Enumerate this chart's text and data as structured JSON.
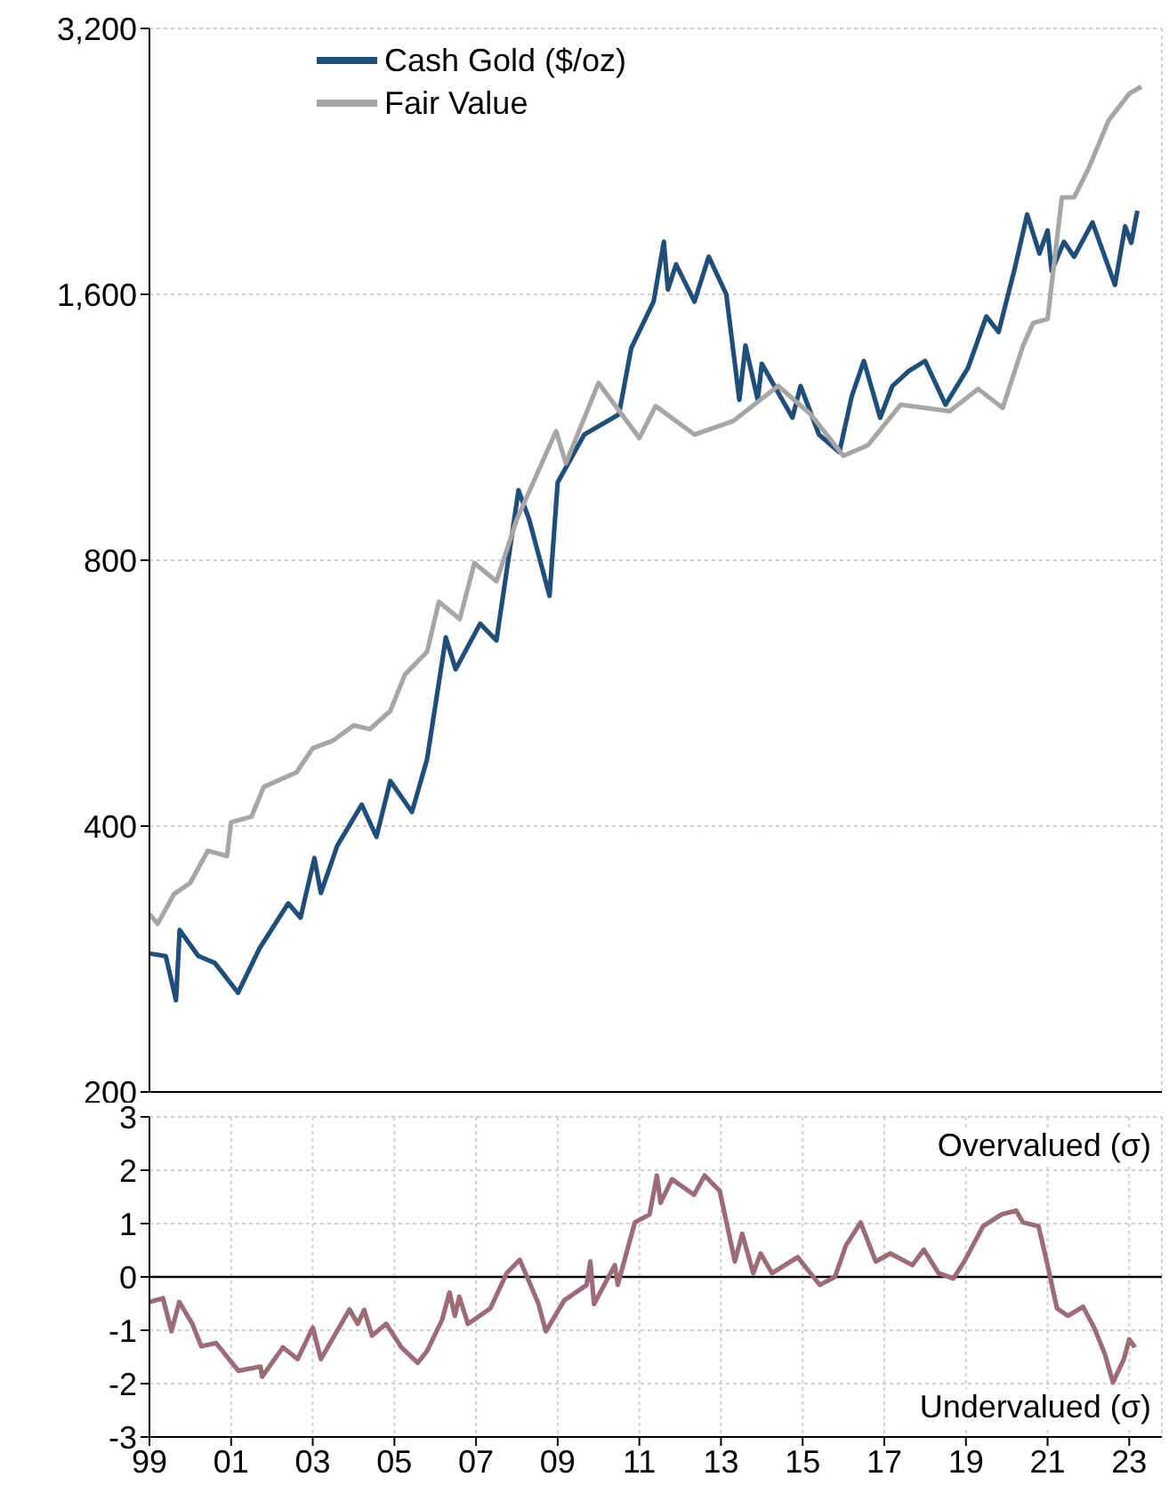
{
  "chart_data": [
    {
      "type": "line",
      "log": "y",
      "grid": true,
      "legend": "top left",
      "tick_labels": "y",
      "xlim": [
        1999,
        2023.8
      ],
      "xticks": [
        {
          "value": 1999,
          "label": null
        },
        {
          "value": 2001,
          "label": null
        },
        {
          "value": 2003,
          "label": null
        },
        {
          "value": 2005,
          "label": null
        },
        {
          "value": 2007,
          "label": null
        },
        {
          "value": 2009,
          "label": null
        },
        {
          "value": 2011,
          "label": null
        },
        {
          "value": 2013,
          "label": null
        },
        {
          "value": 2015,
          "label": null
        },
        {
          "value": 2017,
          "label": null
        },
        {
          "value": 2019,
          "label": null
        },
        {
          "value": 2021,
          "label": null
        },
        {
          "value": 2023,
          "label": null
        }
      ],
      "ylim": [
        200,
        3200
      ],
      "yticks": [
        200,
        400,
        800,
        {
          "value": 1600,
          "label": "1,600"
        },
        {
          "value": 3200,
          "label": "3,200"
        }
      ],
      "series": [
        {
          "name": "Cash Gold ($/oz)",
          "color": "#1f4e79",
          "x": [
            1999.0,
            1999.4,
            1999.65,
            1999.74,
            2000.2,
            2000.6,
            2001.17,
            2001.7,
            2002.4,
            2002.7,
            2003.04,
            2003.2,
            2003.6,
            2004.2,
            2004.56,
            2004.9,
            2005.43,
            2005.8,
            2006.26,
            2006.5,
            2007.1,
            2007.5,
            2008.04,
            2008.3,
            2008.8,
            2009.0,
            2009.65,
            2010.5,
            2010.8,
            2011.35,
            2011.6,
            2011.7,
            2011.9,
            2012.35,
            2012.7,
            2013.13,
            2013.45,
            2013.6,
            2013.9,
            2014.0,
            2014.75,
            2014.95,
            2015.4,
            2015.9,
            2016.2,
            2016.5,
            2016.9,
            2017.2,
            2017.6,
            2018.0,
            2018.5,
            2019.05,
            2019.5,
            2019.8,
            2020.2,
            2020.5,
            2020.8,
            2021.0,
            2021.1,
            2021.4,
            2021.65,
            2022.1,
            2022.65,
            2022.9,
            2023.05,
            2023.2
          ],
          "values": [
            287,
            285,
            254,
            305,
            285,
            280,
            259,
            291,
            327,
            315,
            368,
            336,
            380,
            423,
            389,
            450,
            415,
            476,
            654,
            602,
            678,
            649,
            960,
            890,
            729,
            980,
            1110,
            1170,
            1390,
            1570,
            1835,
            1620,
            1730,
            1570,
            1765,
            1600,
            1215,
            1400,
            1215,
            1335,
            1160,
            1260,
            1110,
            1060,
            1225,
            1345,
            1160,
            1260,
            1310,
            1345,
            1200,
            1320,
            1510,
            1450,
            1715,
            1970,
            1780,
            1890,
            1700,
            1835,
            1765,
            1930,
            1640,
            1910,
            1830,
            1990
          ]
        },
        {
          "name": "Fair Value",
          "color": "#a6a6a6",
          "x": [
            1999.0,
            1999.2,
            1999.6,
            2000.0,
            2000.43,
            2000.9,
            2001.0,
            2001.5,
            2001.8,
            2002.6,
            2003.0,
            2003.5,
            2004.0,
            2004.4,
            2004.9,
            2005.26,
            2005.8,
            2006.09,
            2006.6,
            2006.96,
            2007.5,
            2008.0,
            2008.96,
            2009.2,
            2010.0,
            2011.0,
            2011.4,
            2012.35,
            2013.3,
            2014.4,
            2015.2,
            2016.0,
            2016.6,
            2017.4,
            2018.6,
            2019.3,
            2019.9,
            2020.4,
            2020.65,
            2021.0,
            2021.35,
            2021.65,
            2022.0,
            2022.5,
            2023.0,
            2023.3
          ],
          "values": [
            318,
            310,
            335,
            345,
            375,
            370,
            404,
            410,
            443,
            460,
            490,
            500,
            520,
            515,
            540,
            594,
            630,
            718,
            686,
            794,
            757,
            890,
            1120,
            1030,
            1270,
            1100,
            1196,
            1110,
            1150,
            1260,
            1170,
            1050,
            1080,
            1200,
            1180,
            1250,
            1190,
            1400,
            1485,
            1500,
            2060,
            2060,
            2220,
            2520,
            2700,
            2750
          ]
        }
      ]
    },
    {
      "type": "line",
      "grid": true,
      "xlim": [
        1999,
        2023.8
      ],
      "xticks": [
        {
          "value": 1999,
          "label": "99"
        },
        {
          "value": 2001,
          "label": "01"
        },
        {
          "value": 2003,
          "label": "03"
        },
        {
          "value": 2005,
          "label": "05"
        },
        {
          "value": 2007,
          "label": "07"
        },
        {
          "value": 2009,
          "label": "09"
        },
        {
          "value": 2011,
          "label": "11"
        },
        {
          "value": 2013,
          "label": "13"
        },
        {
          "value": 2015,
          "label": "15"
        },
        {
          "value": 2017,
          "label": "17"
        },
        {
          "value": 2019,
          "label": "19"
        },
        {
          "value": 2021,
          "label": "21"
        },
        {
          "value": 2023,
          "label": "23"
        }
      ],
      "ylim": [
        -3,
        3
      ],
      "yticks": [
        -3,
        -2,
        -1,
        0,
        1,
        2,
        3
      ],
      "ref_lines": [
        {
          "axis": "y",
          "value": 0,
          "color": "#000000"
        }
      ],
      "annotations": [
        "Overvalued (σ)",
        "Undervalued (σ)"
      ],
      "series": [
        {
          "color": "#9b6b78",
          "x": [
            1999.0,
            1999.33,
            1999.54,
            1999.73,
            2000.05,
            2000.27,
            2000.63,
            2001.18,
            2001.72,
            2001.76,
            2002.27,
            2002.63,
            2003.0,
            2003.2,
            2003.9,
            2004.1,
            2004.26,
            2004.45,
            2004.8,
            2005.17,
            2005.57,
            2005.8,
            2006.17,
            2006.35,
            2006.48,
            2006.59,
            2006.8,
            2007.35,
            2007.75,
            2008.07,
            2008.29,
            2008.53,
            2008.71,
            2009.16,
            2009.71,
            2009.8,
            2009.89,
            2010.4,
            2010.47,
            2010.89,
            2011.25,
            2011.43,
            2011.52,
            2011.8,
            2012.34,
            2012.6,
            2012.97,
            2013.34,
            2013.52,
            2013.79,
            2013.97,
            2014.25,
            2014.88,
            2015.42,
            2015.79,
            2016.06,
            2016.42,
            2016.79,
            2017.15,
            2017.69,
            2017.97,
            2018.33,
            2018.69,
            2018.96,
            2019.42,
            2019.87,
            2020.23,
            2020.4,
            2020.78,
            2021.0,
            2021.23,
            2021.5,
            2021.87,
            2022.14,
            2022.41,
            2022.6,
            2022.87,
            2023.0,
            2023.14
          ],
          "values": [
            -0.47,
            -0.4,
            -1.02,
            -0.47,
            -0.88,
            -1.3,
            -1.24,
            -1.76,
            -1.68,
            -1.87,
            -1.32,
            -1.54,
            -0.95,
            -1.54,
            -0.61,
            -0.88,
            -0.62,
            -1.1,
            -0.88,
            -1.32,
            -1.61,
            -1.39,
            -0.8,
            -0.29,
            -0.73,
            -0.37,
            -0.88,
            -0.59,
            0.07,
            0.32,
            -0.07,
            -0.51,
            -1.02,
            -0.44,
            -0.15,
            0.29,
            -0.51,
            0.22,
            -0.15,
            1.02,
            1.17,
            1.9,
            1.39,
            1.83,
            1.54,
            1.9,
            1.61,
            0.29,
            0.81,
            0.07,
            0.44,
            0.07,
            0.37,
            -0.15,
            0,
            0.59,
            1.02,
            0.29,
            0.44,
            0.22,
            0.51,
            0.07,
            -0.03,
            0.29,
            0.95,
            1.17,
            1.24,
            1.02,
            0.95,
            0.22,
            -0.59,
            -0.73,
            -0.56,
            -0.95,
            -1.46,
            -1.98,
            -1.54,
            -1.17,
            -1.32
          ]
        }
      ]
    }
  ]
}
